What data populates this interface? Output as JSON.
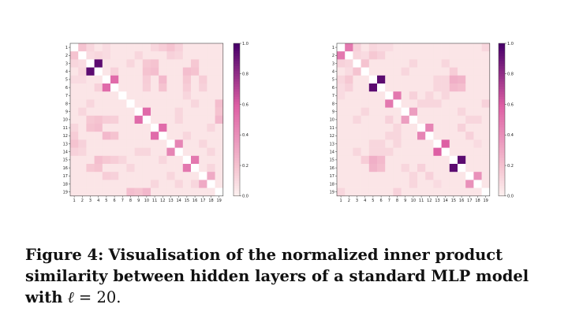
{
  "caption": {
    "label": "Figure 4:",
    "text": "Visualisation of the normalized inner product similarity between hidden layers of a standard MLP model with",
    "math_symbol": "ℓ",
    "math_rest": "= 20."
  },
  "colors": {
    "low": "#fdf3f1",
    "mid1": "#f5c3d0",
    "mid2": "#dd5fa4",
    "high": "#49006a",
    "diag": "#ffffff"
  },
  "chart_data": [
    {
      "type": "heatmap",
      "title": "",
      "x_ticks": [
        "1",
        "2",
        "3",
        "4",
        "5",
        "6",
        "7",
        "8",
        "9",
        "10",
        "11",
        "12",
        "13",
        "14",
        "15",
        "16",
        "17",
        "18",
        "19"
      ],
      "y_ticks": [
        "1",
        "2",
        "3",
        "4",
        "5",
        "6",
        "7",
        "8",
        "9",
        "10",
        "11",
        "12",
        "13",
        "14",
        "15",
        "16",
        "17",
        "18",
        "19"
      ],
      "colorbar_ticks": [
        "0.0",
        "0.2",
        "0.4",
        "0.6",
        "0.8",
        "1.0"
      ],
      "vrange": [
        0,
        1
      ],
      "diagonal": "white",
      "background": 0.06,
      "strong_pairs": [
        [
          3,
          4,
          0.95
        ],
        [
          5,
          6,
          0.55
        ],
        [
          9,
          10,
          0.55
        ],
        [
          11,
          12,
          0.55
        ],
        [
          13,
          14,
          0.45
        ],
        [
          15,
          16,
          0.5
        ],
        [
          17,
          18,
          0.3
        ]
      ],
      "cells": [
        [
          1,
          2,
          0.2
        ],
        [
          1,
          3,
          0.12
        ],
        [
          2,
          3,
          0.1
        ],
        [
          2,
          4,
          0.12
        ],
        [
          1,
          5,
          0.1
        ],
        [
          2,
          5,
          0.1
        ],
        [
          5,
          10,
          0.16
        ],
        [
          5,
          12,
          0.24
        ],
        [
          5,
          15,
          0.18
        ],
        [
          5,
          17,
          0.16
        ],
        [
          6,
          10,
          0.15
        ],
        [
          6,
          12,
          0.2
        ],
        [
          6,
          15,
          0.16
        ],
        [
          6,
          17,
          0.14
        ],
        [
          4,
          6,
          0.14
        ],
        [
          1,
          12,
          0.16
        ],
        [
          1,
          14,
          0.14
        ],
        [
          2,
          13,
          0.14
        ],
        [
          2,
          14,
          0.12
        ],
        [
          1,
          13,
          0.2
        ],
        [
          1,
          11,
          0.12
        ],
        [
          4,
          10,
          0.2
        ],
        [
          4,
          11,
          0.22
        ],
        [
          4,
          15,
          0.22
        ],
        [
          4,
          16,
          0.2
        ],
        [
          3,
          10,
          0.18
        ],
        [
          3,
          11,
          0.2
        ],
        [
          3,
          16,
          0.18
        ],
        [
          10,
          19,
          0.25
        ],
        [
          9,
          19,
          0.2
        ],
        [
          8,
          19,
          0.22
        ],
        [
          11,
          18,
          0.12
        ],
        [
          16,
          18,
          0.12
        ],
        [
          7,
          15,
          0.12
        ],
        [
          8,
          16,
          0.12
        ],
        [
          12,
          15,
          0.12
        ],
        [
          10,
          14,
          0.12
        ],
        [
          13,
          17,
          0.12
        ],
        [
          14,
          18,
          0.12
        ],
        [
          9,
          14,
          0.12
        ],
        [
          2,
          9,
          0.12
        ],
        [
          3,
          8,
          0.12
        ]
      ]
    },
    {
      "type": "heatmap",
      "title": "",
      "x_ticks": [
        "1",
        "2",
        "3",
        "4",
        "5",
        "6",
        "7",
        "8",
        "9",
        "10",
        "11",
        "12",
        "13",
        "14",
        "15",
        "16",
        "17",
        "18",
        "19"
      ],
      "y_ticks": [
        "1",
        "2",
        "3",
        "4",
        "5",
        "6",
        "7",
        "8",
        "9",
        "10",
        "11",
        "12",
        "13",
        "14",
        "15",
        "16",
        "17",
        "18",
        "19"
      ],
      "colorbar_ticks": [
        "0.0",
        "0.2",
        "0.4",
        "0.6",
        "0.8",
        "1.0"
      ],
      "vrange": [
        0,
        1
      ],
      "diagonal": "white",
      "background": 0.06,
      "strong_pairs": [
        [
          1,
          2,
          0.5
        ],
        [
          3,
          4,
          0.2
        ],
        [
          5,
          6,
          0.95
        ],
        [
          7,
          8,
          0.5
        ],
        [
          9,
          10,
          0.35
        ],
        [
          11,
          12,
          0.45
        ],
        [
          13,
          14,
          0.6
        ],
        [
          15,
          16,
          0.95
        ],
        [
          17,
          18,
          0.4
        ]
      ],
      "cells": [
        [
          1,
          3,
          0.14
        ],
        [
          2,
          3,
          0.12
        ],
        [
          2,
          4,
          0.1
        ],
        [
          1,
          5,
          0.12
        ],
        [
          1,
          6,
          0.1
        ],
        [
          2,
          5,
          0.18
        ],
        [
          2,
          6,
          0.14
        ],
        [
          5,
          15,
          0.28
        ],
        [
          5,
          16,
          0.26
        ],
        [
          6,
          15,
          0.24
        ],
        [
          6,
          16,
          0.22
        ],
        [
          5,
          13,
          0.12
        ],
        [
          5,
          14,
          0.12
        ],
        [
          6,
          13,
          0.12
        ],
        [
          6,
          14,
          0.12
        ],
        [
          1,
          7,
          0.1
        ],
        [
          4,
          9,
          0.12
        ],
        [
          3,
          10,
          0.12
        ],
        [
          7,
          12,
          0.12
        ],
        [
          8,
          13,
          0.12
        ],
        [
          9,
          16,
          0.12
        ],
        [
          10,
          17,
          0.12
        ],
        [
          11,
          16,
          0.14
        ],
        [
          12,
          17,
          0.14
        ],
        [
          8,
          19,
          0.14
        ],
        [
          10,
          18,
          0.12
        ],
        [
          3,
          14,
          0.12
        ],
        [
          4,
          15,
          0.16
        ],
        [
          7,
          10,
          0.14
        ],
        [
          8,
          11,
          0.12
        ],
        [
          7,
          14,
          0.12
        ],
        [
          8,
          12,
          0.12
        ],
        [
          13,
          18,
          0.1
        ],
        [
          1,
          19,
          0.12
        ]
      ]
    }
  ]
}
